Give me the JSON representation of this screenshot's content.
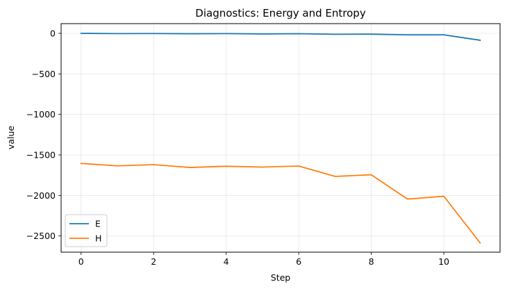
{
  "chart_data": {
    "type": "line",
    "title": "Diagnostics: Energy and Entropy",
    "xlabel": "Step",
    "ylabel": "value",
    "x": [
      0,
      1,
      2,
      3,
      4,
      5,
      6,
      7,
      8,
      9,
      10,
      11
    ],
    "xlim": [
      -0.55,
      11.55
    ],
    "ylim": [
      -2700,
      120
    ],
    "xticks": [
      0,
      2,
      4,
      6,
      8,
      10
    ],
    "yticks": [
      0,
      -500,
      -1000,
      -1500,
      -2000,
      -2500
    ],
    "ytick_labels": [
      "0",
      "−500",
      "−1000",
      "−1500",
      "−2000",
      "−2500"
    ],
    "grid": true,
    "legend_position": "lower-left",
    "series": [
      {
        "name": "E",
        "color": "#1f77b4",
        "values": [
          0,
          -3,
          -2,
          -5,
          -3,
          -7,
          -4,
          -12,
          -10,
          -18,
          -18,
          -85
        ]
      },
      {
        "name": "H",
        "color": "#ff7f0e",
        "values": [
          -1605,
          -1635,
          -1620,
          -1655,
          -1640,
          -1650,
          -1637,
          -1765,
          -1745,
          -2045,
          -2010,
          -2585
        ]
      }
    ]
  }
}
